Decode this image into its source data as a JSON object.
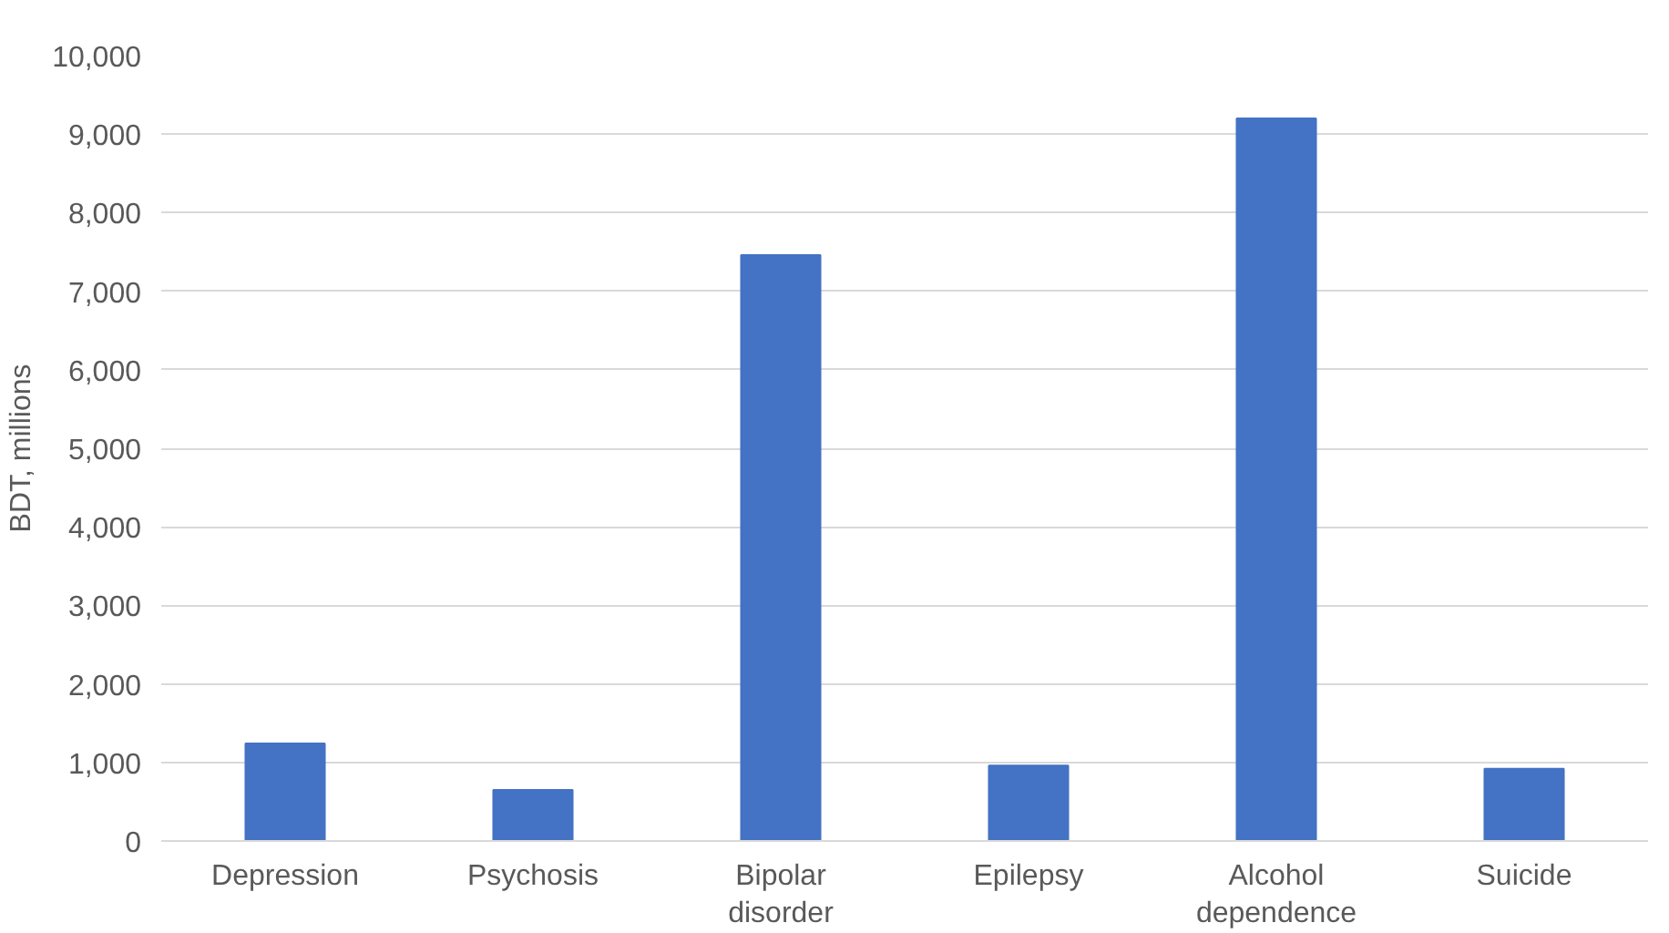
{
  "chart_data": {
    "type": "bar",
    "ylabel": "BDT, millions",
    "categories": [
      "Depression",
      "Psychosis",
      "Bipolar\ndisorder",
      "Epilepsy",
      "Alcohol\ndependence",
      "Suicide"
    ],
    "values": [
      1240,
      650,
      7460,
      960,
      9200,
      920
    ],
    "color": "#4472c4",
    "ylim": [
      0,
      10000
    ],
    "yticks": [
      {
        "value": 0,
        "label": "0"
      },
      {
        "value": 1000,
        "label": "1,000"
      },
      {
        "value": 2000,
        "label": "2,000"
      },
      {
        "value": 3000,
        "label": "3,000"
      },
      {
        "value": 4000,
        "label": "4,000"
      },
      {
        "value": 5000,
        "label": "5,000"
      },
      {
        "value": 6000,
        "label": "6,000"
      },
      {
        "value": 7000,
        "label": "7,000"
      },
      {
        "value": 8000,
        "label": "8,000"
      },
      {
        "value": 9000,
        "label": "9,000"
      },
      {
        "value": 10000,
        "label": "10,000"
      }
    ],
    "grid": "y"
  }
}
